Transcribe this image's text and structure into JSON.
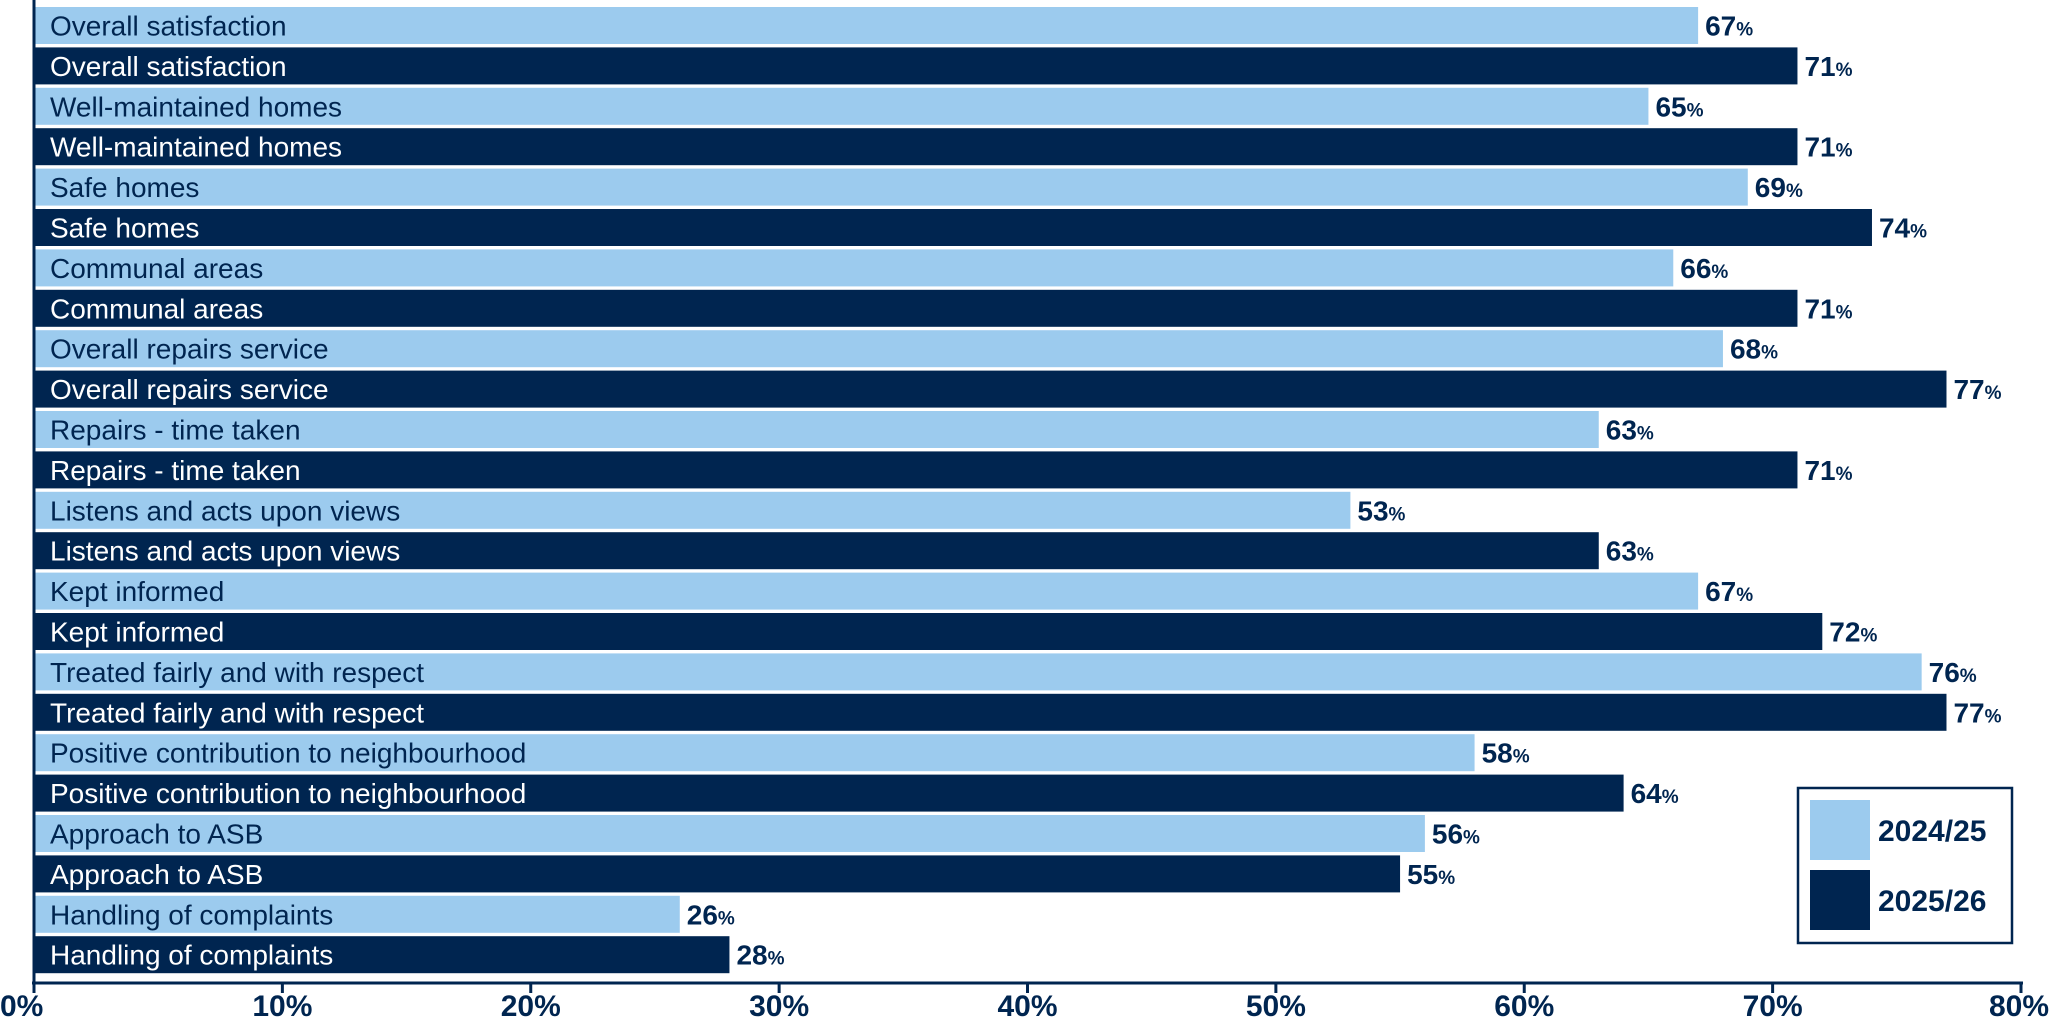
{
  "chart_data": {
    "type": "bar",
    "orientation": "horizontal",
    "categories": [
      "Overall satisfaction",
      "Well-maintained homes",
      "Safe homes",
      "Communal areas",
      "Overall repairs service",
      "Repairs - time taken",
      "Listens and acts upon views",
      "Kept informed",
      "Treated fairly and with respect",
      "Positive contribution to neighbourhood",
      "Approach to ASB",
      "Handling of complaints"
    ],
    "series": [
      {
        "name": "2024/25",
        "color": "#9ccbee",
        "values": [
          67,
          65,
          69,
          66,
          68,
          63,
          53,
          67,
          76,
          58,
          56,
          26
        ]
      },
      {
        "name": "2025/26",
        "color": "#002550",
        "values": [
          71,
          71,
          74,
          71,
          77,
          71,
          63,
          72,
          77,
          64,
          55,
          28
        ]
      }
    ],
    "value_suffix": "%",
    "xlim": [
      0,
      80
    ],
    "x_ticks": [
      "0%",
      "10%",
      "20%",
      "30%",
      "40%",
      "50%",
      "60%",
      "70%",
      "80%"
    ],
    "title": "",
    "xlabel": "",
    "ylabel": "",
    "grid": false,
    "legend_position": "bottom-right",
    "label_color_on_light": "#002550",
    "label_color_on_dark": "#ffffff",
    "value_label_color": "#002550"
  }
}
